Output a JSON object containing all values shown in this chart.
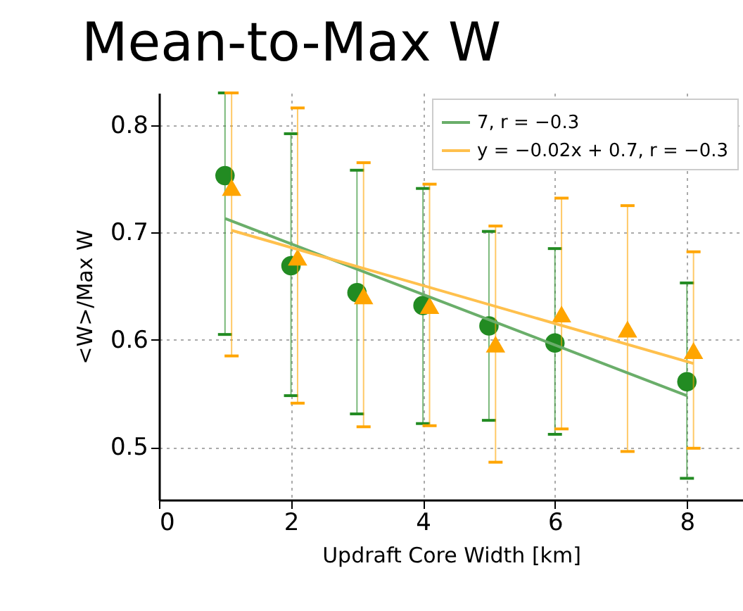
{
  "chart_data": {
    "type": "scatter",
    "title": "Mean-to-Max W",
    "xlabel": "Updraft Core Width [km]",
    "ylabel": "<W>/Max W",
    "xlim": [
      0,
      8.85
    ],
    "ylim": [
      0.451,
      0.83
    ],
    "xticks": [
      0,
      2,
      4,
      6,
      8
    ],
    "yticks": [
      0.5,
      0.6,
      0.7,
      0.8
    ],
    "grid": true,
    "legend": "top right",
    "series": [
      {
        "color": "#228b22",
        "marker": "circle",
        "x": [
          1,
          2,
          3,
          4,
          5,
          6,
          8
        ],
        "values": [
          0.753,
          0.669,
          0.644,
          0.632,
          0.613,
          0.597,
          0.561
        ],
        "errors": [
          [
            0.605,
            0.83
          ],
          [
            0.548,
            0.792
          ],
          [
            0.531,
            0.758
          ],
          [
            0.522,
            0.741
          ],
          [
            0.525,
            0.701
          ],
          [
            0.512,
            0.685
          ],
          [
            0.471,
            0.653
          ]
        ]
      },
      {
        "color": "#ffa500",
        "marker": "triangle",
        "x": [
          1.1,
          2.1,
          3.1,
          4.1,
          5.1,
          6.1,
          7.1,
          8.1
        ],
        "values": [
          0.742,
          0.677,
          0.641,
          0.632,
          0.596,
          0.624,
          0.61,
          0.59
        ],
        "errors": [
          [
            0.585,
            0.83
          ],
          [
            0.541,
            0.816
          ],
          [
            0.519,
            0.765
          ],
          [
            0.52,
            0.745
          ],
          [
            0.486,
            0.706
          ],
          [
            0.517,
            0.732
          ],
          [
            0.496,
            0.725
          ],
          [
            0.499,
            0.682
          ]
        ]
      },
      {
        "type": "line",
        "name": "7, r = −0.3",
        "color": "#6aae6a",
        "x": [
          1,
          8
        ],
        "values": [
          0.713,
          0.548
        ]
      },
      {
        "type": "line",
        "name": "y = −0.02x + 0.7, r = −0.3",
        "color": "#ffc04d",
        "x": [
          1.1,
          8.1
        ],
        "values": [
          0.702,
          0.578
        ]
      }
    ]
  }
}
